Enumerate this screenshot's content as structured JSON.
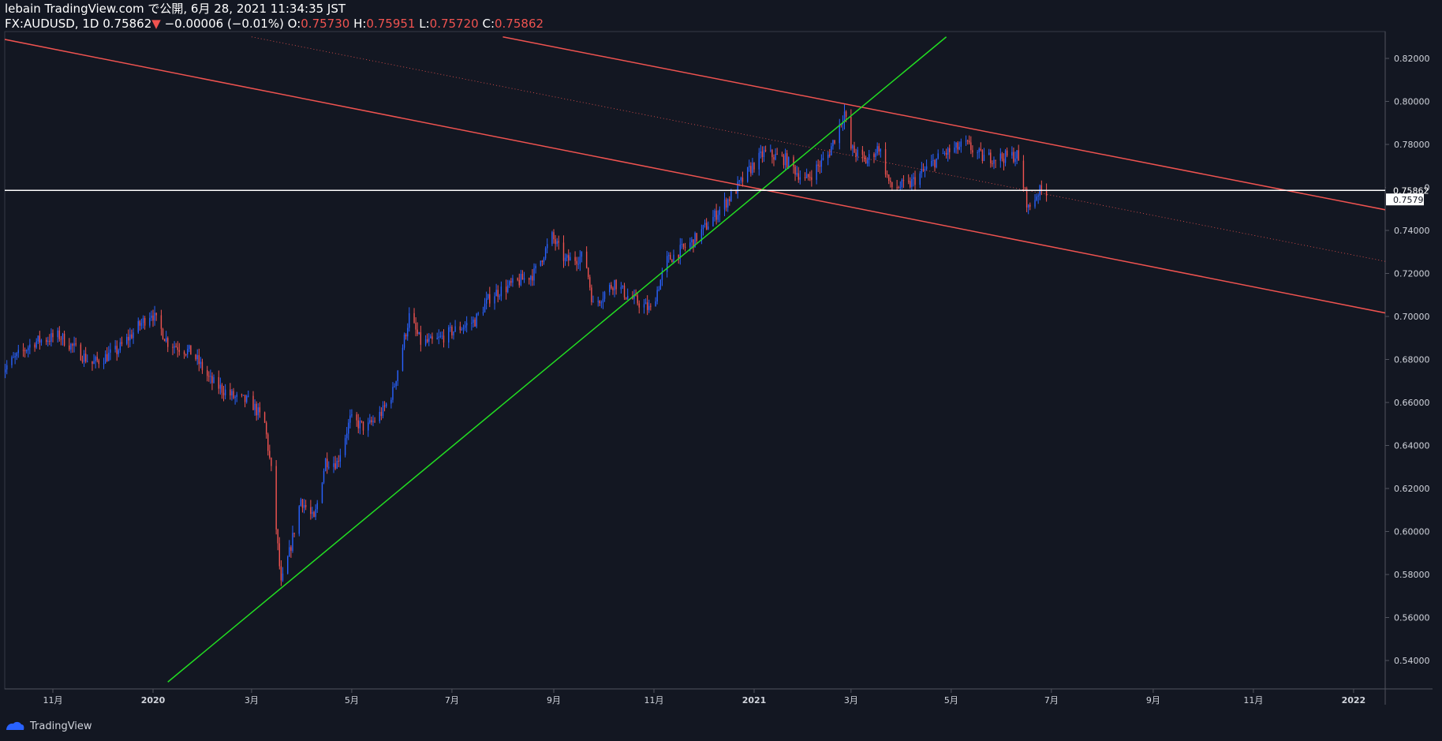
{
  "header": {
    "line1": "lebain TradingView.com で公開, 6月 28, 2021 11:34:35 JST",
    "symbol": "FX:AUDUSD, 1D",
    "last": "0.75862",
    "arrow": "▼",
    "change": "−0.00006 (−0.01%)",
    "o_label": "O:",
    "o_val": "0.75730",
    "h_label": "H:",
    "h_val": "0.75951",
    "l_label": "L:",
    "l_val": "0.75720",
    "c_label": "C:",
    "c_val": "0.75862"
  },
  "footer": {
    "brand": "TradingView"
  },
  "colors": {
    "background": "#131722",
    "up": "#2962ff",
    "down": "#ef5350",
    "channel": "#ef5350",
    "trendline": "#22dd22",
    "hline": "#ffffff",
    "grid_text": "#d1d4dc"
  },
  "chart_data": {
    "type": "candlestick",
    "interval": "1D",
    "ylim": [
      0.53,
      0.83
    ],
    "y_ticks": [
      "0.82000",
      "0.80000",
      "0.78000",
      "0.76000",
      "0.74000",
      "0.72000",
      "0.70000",
      "0.68000",
      "0.66000",
      "0.64000",
      "0.62000",
      "0.60000",
      "0.58000",
      "0.56000",
      "0.54000"
    ],
    "x_ticks": [
      {
        "label": "11月",
        "date": "2019-11-01"
      },
      {
        "label": "2020",
        "date": "2020-01-01"
      },
      {
        "label": "3月",
        "date": "2020-03-01"
      },
      {
        "label": "5月",
        "date": "2020-05-01"
      },
      {
        "label": "7月",
        "date": "2020-07-01"
      },
      {
        "label": "9月",
        "date": "2020-09-01"
      },
      {
        "label": "11月",
        "date": "2020-11-01"
      },
      {
        "label": "2021",
        "date": "2021-01-01"
      },
      {
        "label": "3月",
        "date": "2021-03-01"
      },
      {
        "label": "5月",
        "date": "2021-05-01"
      },
      {
        "label": "7月",
        "date": "2021-07-01"
      },
      {
        "label": "9月",
        "date": "2021-09-01"
      },
      {
        "label": "11月",
        "date": "2021-11-01"
      },
      {
        "label": "2022",
        "date": "2022-01-01"
      }
    ],
    "price_path": [
      [
        "2019-10-01",
        0.675
      ],
      [
        "2019-10-20",
        0.688
      ],
      [
        "2019-11-05",
        0.691
      ],
      [
        "2019-11-25",
        0.678
      ],
      [
        "2019-12-10",
        0.684
      ],
      [
        "2019-12-31",
        0.702
      ],
      [
        "2020-01-10",
        0.688
      ],
      [
        "2020-01-25",
        0.683
      ],
      [
        "2020-02-05",
        0.67
      ],
      [
        "2020-02-20",
        0.662
      ],
      [
        "2020-03-01",
        0.66
      ],
      [
        "2020-03-09",
        0.65
      ],
      [
        "2020-03-13",
        0.628
      ],
      [
        "2020-03-19",
        0.575
      ],
      [
        "2020-03-24",
        0.59
      ],
      [
        "2020-03-31",
        0.615
      ],
      [
        "2020-04-08",
        0.605
      ],
      [
        "2020-04-15",
        0.633
      ],
      [
        "2020-04-22",
        0.632
      ],
      [
        "2020-04-30",
        0.652
      ],
      [
        "2020-05-10",
        0.648
      ],
      [
        "2020-05-20",
        0.656
      ],
      [
        "2020-05-26",
        0.665
      ],
      [
        "2020-06-05",
        0.7
      ],
      [
        "2020-06-12",
        0.688
      ],
      [
        "2020-06-20",
        0.688
      ],
      [
        "2020-07-01",
        0.693
      ],
      [
        "2020-07-15",
        0.698
      ],
      [
        "2020-07-25",
        0.71
      ],
      [
        "2020-08-10",
        0.716
      ],
      [
        "2020-08-20",
        0.72
      ],
      [
        "2020-08-31",
        0.737
      ],
      [
        "2020-09-08",
        0.726
      ],
      [
        "2020-09-20",
        0.728
      ],
      [
        "2020-09-25",
        0.705
      ],
      [
        "2020-10-08",
        0.716
      ],
      [
        "2020-10-15",
        0.71
      ],
      [
        "2020-10-30",
        0.703
      ],
      [
        "2020-11-09",
        0.726
      ],
      [
        "2020-11-25",
        0.735
      ],
      [
        "2020-12-05",
        0.744
      ],
      [
        "2020-12-20",
        0.758
      ],
      [
        "2020-12-31",
        0.77
      ],
      [
        "2021-01-07",
        0.776
      ],
      [
        "2021-01-20",
        0.773
      ],
      [
        "2021-02-01",
        0.763
      ],
      [
        "2021-02-15",
        0.775
      ],
      [
        "2021-02-25",
        0.795
      ],
      [
        "2021-03-01",
        0.778
      ],
      [
        "2021-03-10",
        0.772
      ],
      [
        "2021-03-18",
        0.779
      ],
      [
        "2021-03-25",
        0.76
      ],
      [
        "2021-04-05",
        0.761
      ],
      [
        "2021-04-15",
        0.768
      ],
      [
        "2021-04-25",
        0.775
      ],
      [
        "2021-05-10",
        0.78
      ],
      [
        "2021-05-20",
        0.774
      ],
      [
        "2021-06-01",
        0.774
      ],
      [
        "2021-06-10",
        0.775
      ],
      [
        "2021-06-17",
        0.75
      ],
      [
        "2021-06-23",
        0.758
      ],
      [
        "2021-06-28",
        0.7586
      ]
    ],
    "annotations": {
      "hline": 0.75862,
      "hline_label": "0.75862",
      "secondary_label": "0.75790",
      "trendline": [
        [
          "2020-01-10",
          0.53
        ],
        [
          "2021-04-28",
          0.83
        ]
      ],
      "channel_upper": [
        [
          "2020-08-01",
          0.83
        ],
        [
          "2022-01-31",
          0.748
        ]
      ],
      "channel_lower": [
        [
          "2019-09-25",
          0.83
        ],
        [
          "2022-01-31",
          0.7
        ]
      ],
      "channel_mid": [
        [
          "2020-03-01",
          0.83
        ],
        [
          "2022-01-31",
          0.724
        ]
      ]
    }
  }
}
